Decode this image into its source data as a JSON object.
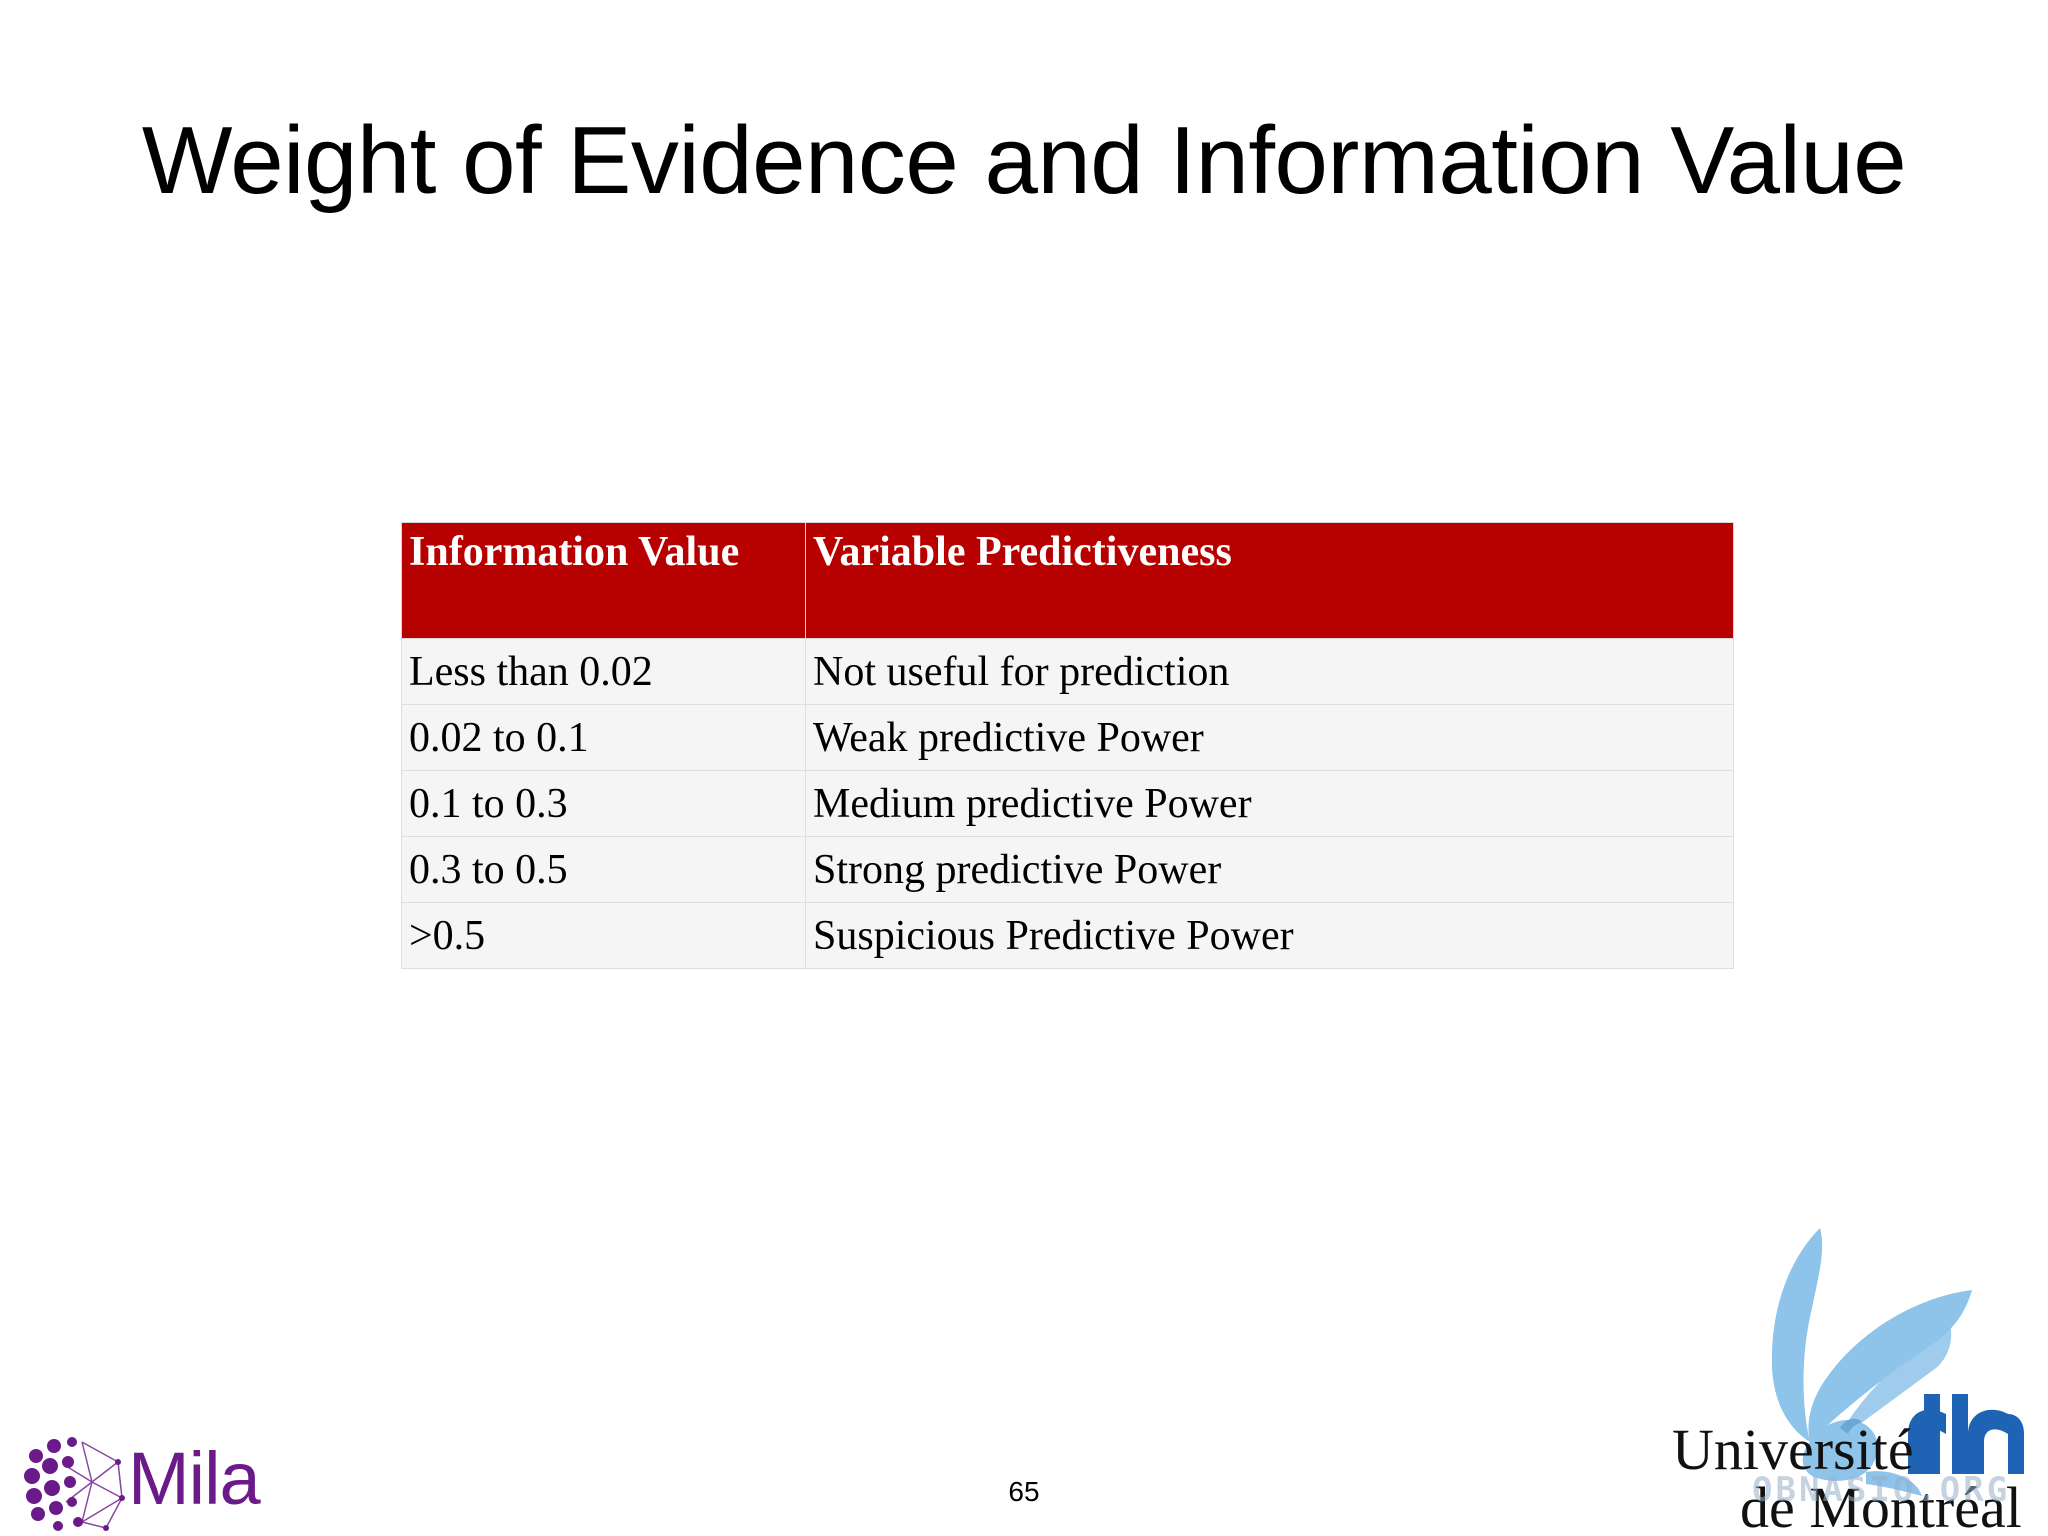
{
  "slide": {
    "title": "Weight of Evidence and Information Value",
    "page_number": "65"
  },
  "table": {
    "headers": [
      "Information Value",
      "Variable Predictiveness"
    ],
    "rows": [
      [
        "Less than 0.02",
        "Not useful for prediction"
      ],
      [
        "0.02 to 0.1",
        "Weak predictive Power"
      ],
      [
        "0.1 to 0.3",
        "Medium predictive Power"
      ],
      [
        "0.3 to 0.5",
        "Strong predictive Power"
      ],
      [
        ">0.5",
        "Suspicious Predictive Power"
      ]
    ],
    "header_color": "#b70000"
  },
  "logos": {
    "mila": {
      "text": "Mila",
      "icon": "mila-dots-icon",
      "color": "#6b1a8a"
    },
    "udem": {
      "line1": "Université",
      "line2": "de Montréal",
      "icon": "phoenix-icon",
      "color": "#8ec3ea"
    },
    "watermark": "OBNASIO.ORG"
  }
}
